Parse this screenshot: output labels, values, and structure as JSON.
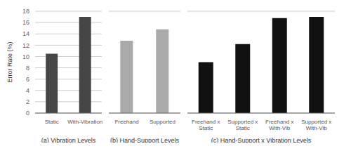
{
  "chart_data": [
    {
      "type": "bar",
      "categories": [
        "Static",
        "With-Vibration"
      ],
      "values": [
        10.5,
        17.0
      ],
      "color": "#454545",
      "xlabel": "(a) Vibration Levels",
      "ylabel": "Error Rate (%)",
      "ylim": [
        0,
        18
      ],
      "yticks": [
        0,
        2,
        4,
        6,
        8,
        10,
        12,
        14,
        16,
        18
      ],
      "grid": true
    },
    {
      "type": "bar",
      "categories": [
        "Freehand",
        "Supported"
      ],
      "values": [
        12.8,
        14.8
      ],
      "color": "#aaaaaa",
      "xlabel": "(b) Hand-Support Levels",
      "ylim": [
        0,
        18
      ],
      "yticks": [
        0,
        2,
        4,
        6,
        8,
        10,
        12,
        14,
        16,
        18
      ],
      "grid": true,
      "tick_labels": "x"
    },
    {
      "type": "bar",
      "categories": [
        "Freehand x\nStatic",
        "Supported x\nStatic",
        "Freehand x\nWith-Vib",
        "Supported x\nWith-Vib"
      ],
      "values": [
        9.0,
        12.2,
        16.8,
        17.0
      ],
      "color": "#111111",
      "xlabel": "(c) Hand-Support x Vibration Levels",
      "ylim": [
        0,
        18
      ],
      "yticks": [
        0,
        2,
        4,
        6,
        8,
        10,
        12,
        14,
        16,
        18
      ],
      "grid": true,
      "tick_labels": "x"
    }
  ]
}
